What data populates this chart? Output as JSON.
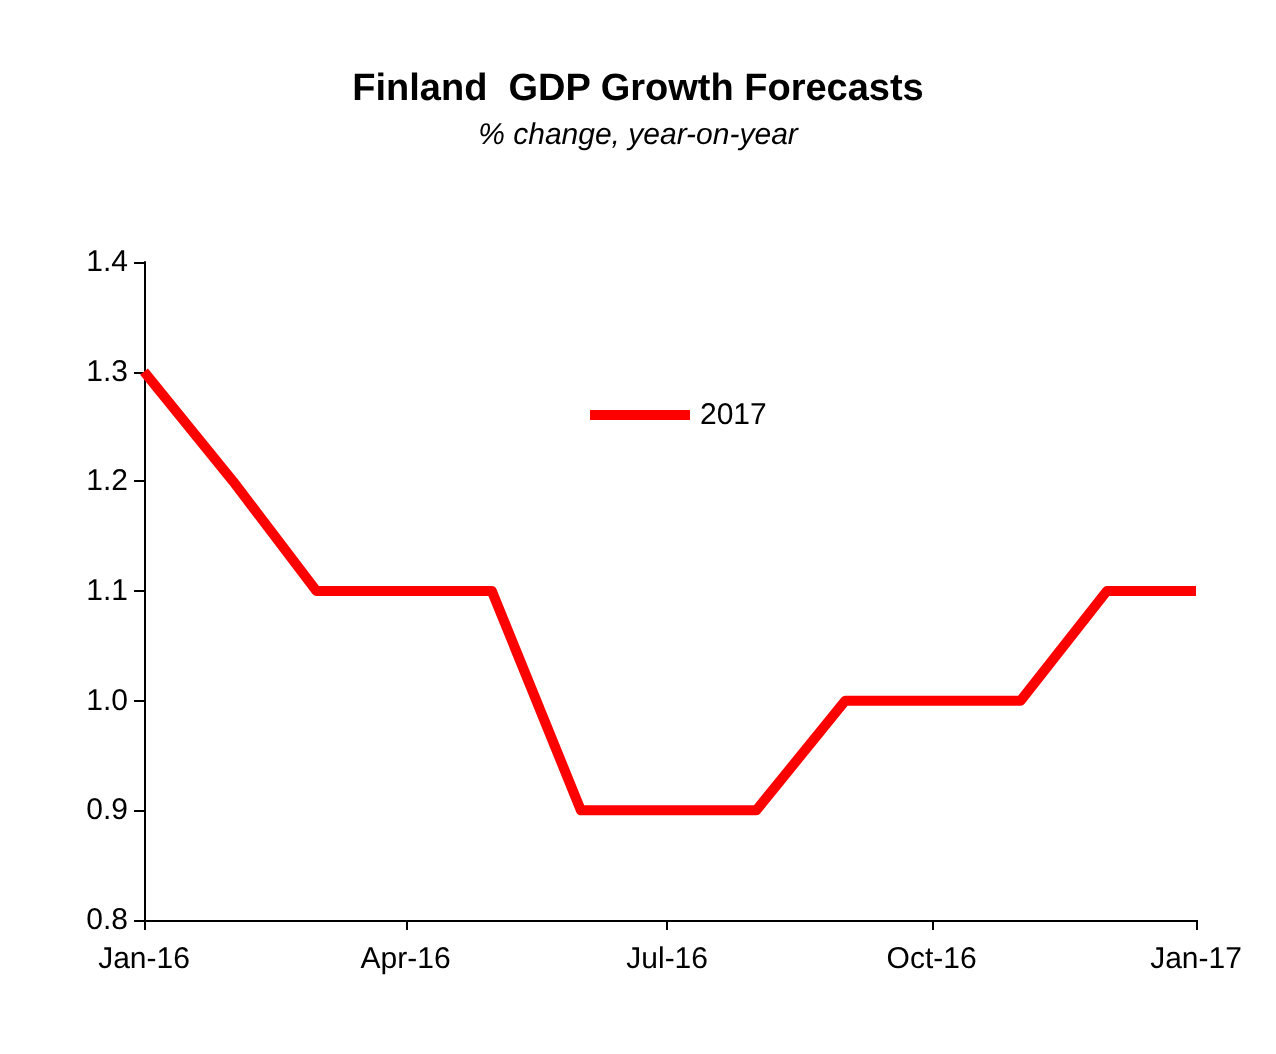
{
  "chart_data": {
    "type": "line",
    "title": "Finland  GDP Growth Forecasts",
    "subtitle": "% change, year-on-year",
    "x": [
      "2016-01",
      "2016-02",
      "2016-03",
      "2016-04",
      "2016-05",
      "2016-06",
      "2016-07",
      "2016-08",
      "2016-09",
      "2016-10",
      "2016-11",
      "2016-12",
      "2017-01"
    ],
    "series": [
      {
        "name": "2017",
        "color": "#ff0000",
        "values": [
          1.3,
          1.2,
          1.1,
          1.1,
          1.1,
          0.9,
          0.9,
          0.9,
          1.0,
          1.0,
          1.0,
          1.1,
          1.1
        ]
      }
    ],
    "xlim": [
      "2016-01",
      "2017-01"
    ],
    "xticks": [
      {
        "value": "2016-01",
        "label": "Jan-16"
      },
      {
        "value": "2016-04",
        "label": "Apr-16"
      },
      {
        "value": "2016-07",
        "label": "Jul-16"
      },
      {
        "value": "2016-10",
        "label": "Oct-16"
      },
      {
        "value": "2017-01",
        "label": "Jan-17"
      }
    ],
    "ylim": [
      0.8,
      1.4
    ],
    "yticks": [
      0.8,
      0.9,
      {
        "value": 1,
        "label": "1.0"
      },
      1.1,
      1.2,
      1.3,
      1.4
    ],
    "grid": false,
    "legend": "top",
    "marker": "none",
    "line_style": "solid"
  }
}
